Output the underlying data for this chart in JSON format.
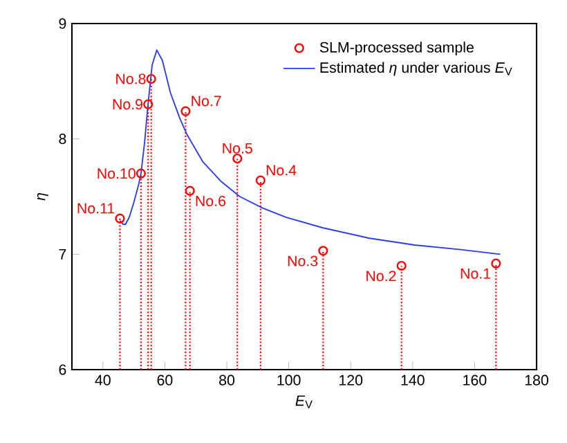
{
  "chart_data": {
    "type": "lollipop",
    "xlabel": "*E*$_{V}$",
    "ylabel": "*η*",
    "xlim": [
      30,
      180
    ],
    "xticks": [
      40,
      60,
      80,
      100,
      120,
      140,
      160,
      180
    ],
    "ylim": [
      6,
      9
    ],
    "yticks": [
      6,
      7,
      8,
      9
    ],
    "legend": "top right",
    "grid": false,
    "series": [
      {
        "name": "SLM-processed sample",
        "color": "#ff0000",
        "marker": "circle",
        "line_style": "dotted",
        "x": [
          45.5,
          52.3,
          54.6,
          55.6,
          66.7,
          68.1,
          83.4,
          90.9,
          111.1,
          136.4,
          166.9
        ],
        "values": [
          7.31,
          7.7,
          8.3,
          8.52,
          8.24,
          7.55,
          7.83,
          7.64,
          7.03,
          6.9,
          6.92
        ],
        "value_labels": [
          "No.11",
          "No.10",
          "No.9",
          "No.8",
          "No.7",
          "No.6",
          "No.5",
          "No.4",
          "No.3",
          "No.2",
          "No.1"
        ]
      },
      {
        "name": "Estimated *η* under various *E*$_{V}$",
        "type": "line",
        "color": "#2b3bf0",
        "marker": "none",
        "line_style": "solid",
        "x": [
          45.5,
          46.5,
          47.3,
          48.5,
          50,
          51.5,
          52.3,
          53.5,
          54.5,
          55.9,
          57.4,
          59.2,
          61.8,
          64.8,
          67.1,
          72.3,
          78.2,
          84.2,
          91.6,
          99.1,
          110.9,
          125.8,
          140.7,
          155.6,
          168.3
        ],
        "values": [
          7.29,
          7.26,
          7.26,
          7.32,
          7.45,
          7.6,
          7.7,
          7.98,
          8.28,
          8.64,
          8.77,
          8.68,
          8.4,
          8.18,
          8.04,
          7.8,
          7.63,
          7.5,
          7.4,
          7.32,
          7.23,
          7.14,
          7.08,
          7.04,
          7.0
        ]
      }
    ]
  }
}
